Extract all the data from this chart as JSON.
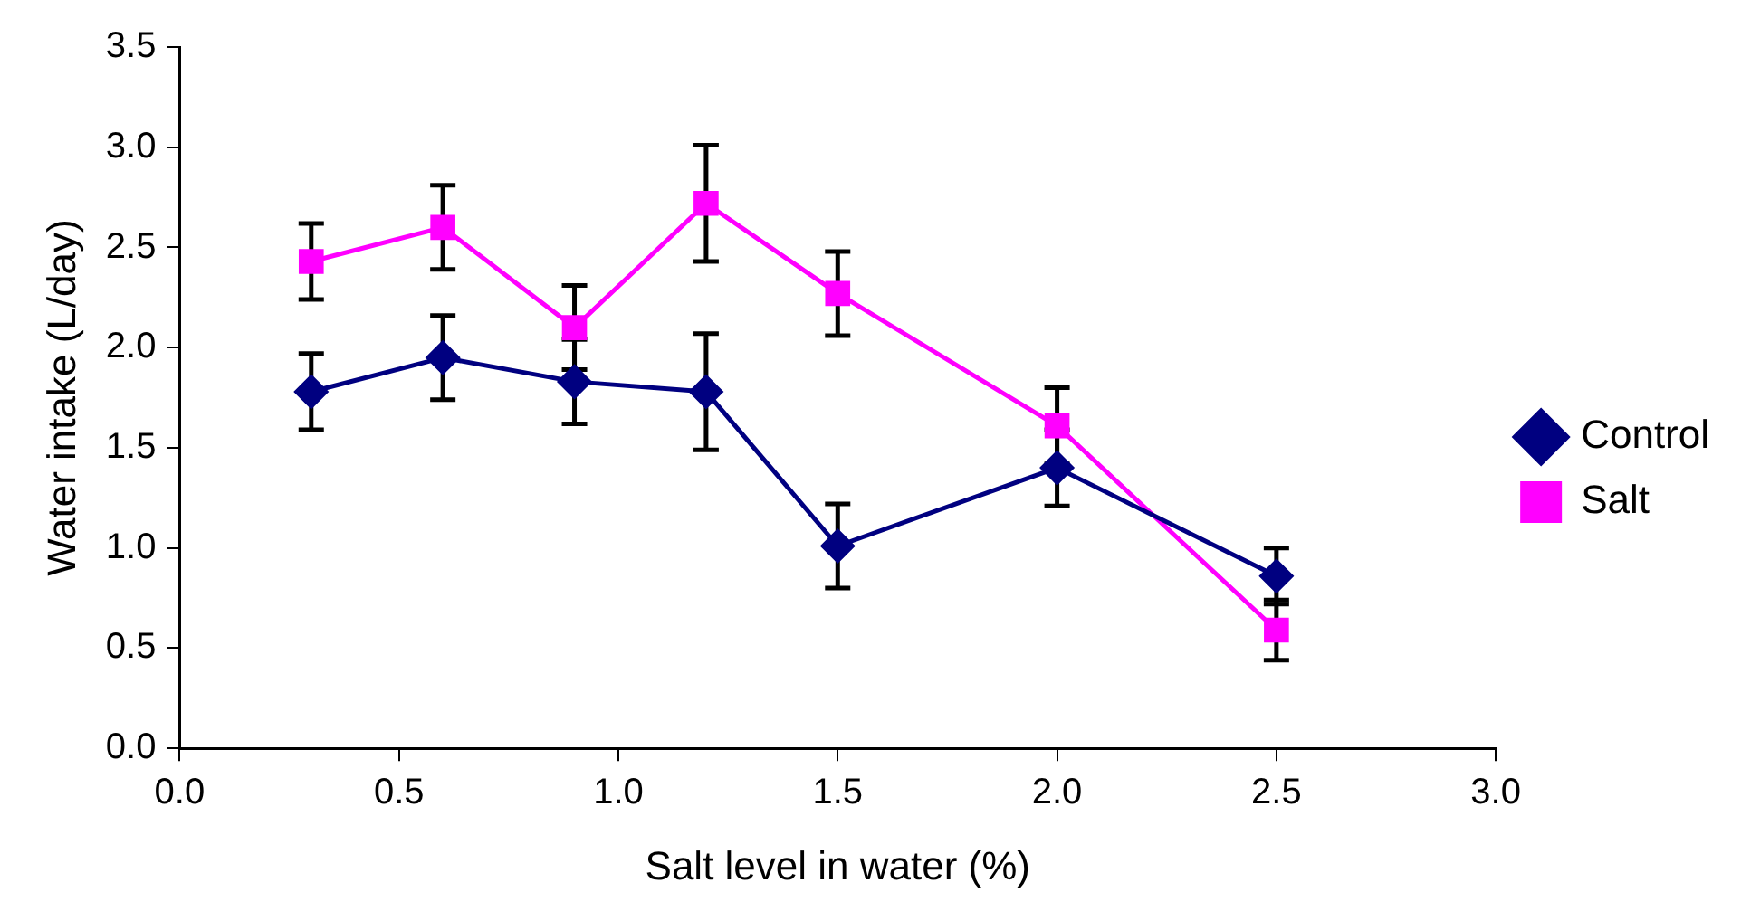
{
  "chart_data": {
    "type": "line",
    "xlabel": "Salt level in water (%)",
    "ylabel": "Water intake (L/day)",
    "x": [
      0.3,
      0.6,
      0.9,
      1.2,
      1.5,
      2.0,
      2.5
    ],
    "series": [
      {
        "name": "Control",
        "color": "#000080",
        "marker": "diamond",
        "values": [
          1.78,
          1.95,
          1.83,
          1.78,
          1.01,
          1.4,
          0.86
        ],
        "errors": [
          0.19,
          0.21,
          0.21,
          0.29,
          0.21,
          0.19,
          0.14
        ]
      },
      {
        "name": "Salt",
        "color": "#ff00ff",
        "marker": "square",
        "values": [
          2.43,
          2.6,
          2.1,
          2.72,
          2.27,
          1.61,
          0.59
        ],
        "errors": [
          0.19,
          0.21,
          0.21,
          0.29,
          0.21,
          0.19,
          0.15
        ]
      }
    ],
    "xlim": [
      0,
      3
    ],
    "xticks": [
      {
        "value": 0,
        "label": "0.0"
      },
      {
        "value": 0.5,
        "label": "0.5"
      },
      {
        "value": 1,
        "label": "1.0"
      },
      {
        "value": 1.5,
        "label": "1.5"
      },
      {
        "value": 2,
        "label": "2.0"
      },
      {
        "value": 2.5,
        "label": "2.5"
      },
      {
        "value": 3,
        "label": "3.0"
      }
    ],
    "ylim": [
      0,
      3.5
    ],
    "yticks": [
      {
        "value": 0,
        "label": "0.0"
      },
      {
        "value": 0.5,
        "label": "0.5"
      },
      {
        "value": 1,
        "label": "1.0"
      },
      {
        "value": 1.5,
        "label": "1.5"
      },
      {
        "value": 2,
        "label": "2.0"
      },
      {
        "value": 2.5,
        "label": "2.5"
      },
      {
        "value": 3,
        "label": "3.0"
      },
      {
        "value": 3.5,
        "label": "3.5"
      }
    ],
    "grid": false,
    "legend": "right",
    "line_style": "solid"
  }
}
